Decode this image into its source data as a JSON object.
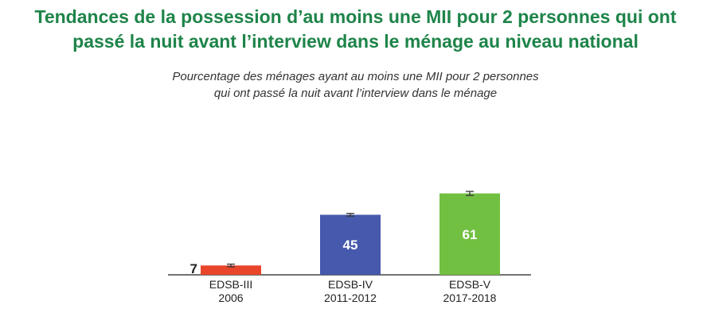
{
  "title_lines": [
    "Tendances de la possession d’au moins une MII pour 2 personnes qui ont",
    "passé la nuit avant l’interview dans le ménage au niveau national"
  ],
  "subtitle_lines": [
    "Pourcentage des ménages ayant au moins une MII pour 2 personnes",
    "qui ont passé la nuit avant l’interview dans le ménage"
  ],
  "chart_data": {
    "type": "bar",
    "title": "Tendances de la possession d’au moins une MII pour 2 personnes qui ont passé la nuit avant l’interview dans le ménage au niveau national",
    "subtitle": "Pourcentage des ménages ayant au moins une MII pour 2 personnes qui ont passé la nuit avant l’interview dans le ménage",
    "categories": [
      [
        "EDSB-III",
        "2006"
      ],
      [
        "EDSB-IV",
        "2011-2012"
      ],
      [
        "EDSB-V",
        "2017-2018"
      ]
    ],
    "values": [
      7,
      45,
      61
    ],
    "data_labels": [
      "7",
      "45",
      "61"
    ],
    "error_bars": [
      1,
      1,
      1.5
    ],
    "colors": [
      "#e8452a",
      "#4659ad",
      "#72c041"
    ],
    "xlabel": "",
    "ylabel": "",
    "ylim": [
      0,
      100
    ],
    "grid": false,
    "legend": "none"
  }
}
